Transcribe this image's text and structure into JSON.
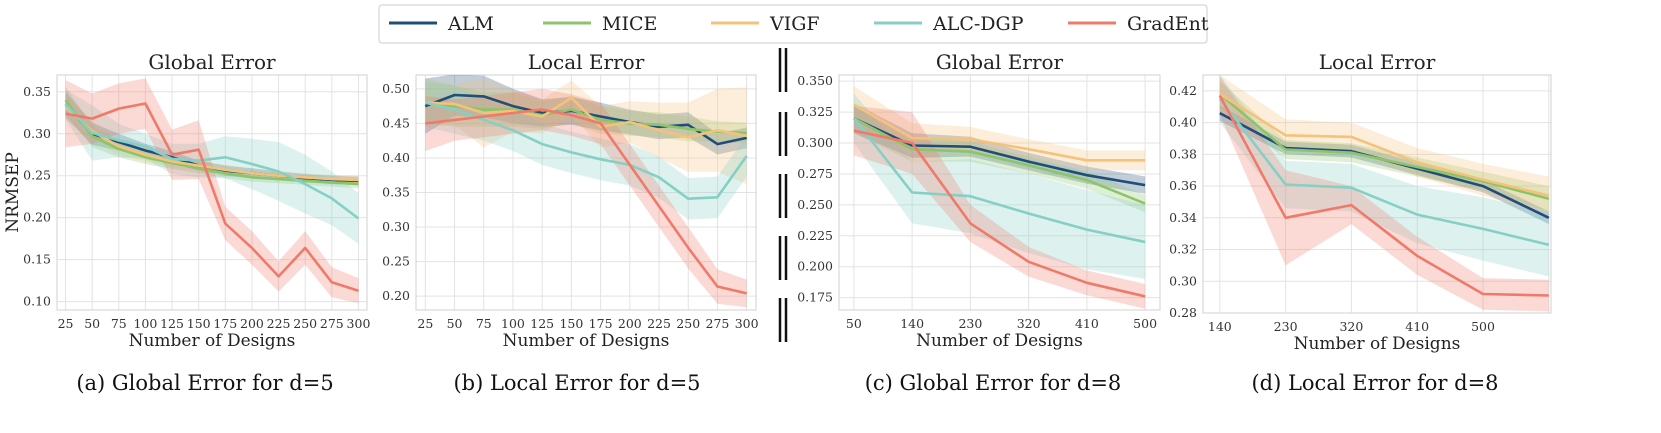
{
  "legend": [
    {
      "name": "ALM",
      "color": "#1f4e79"
    },
    {
      "name": "MICE",
      "color": "#8cc46a"
    },
    {
      "name": "VIGF",
      "color": "#f5c27a"
    },
    {
      "name": "ALC-DGP",
      "color": "#86cfc4"
    },
    {
      "name": "GradEnt",
      "color": "#ef7a6a"
    }
  ],
  "chart_data": [
    {
      "type": "line",
      "title": "Global Error",
      "caption": "(a) Global Error for d=5",
      "xlabel": "Number of Designs",
      "ylabel": "NRMSEP",
      "x": [
        25,
        50,
        75,
        100,
        125,
        150,
        175,
        200,
        225,
        250,
        275,
        300
      ],
      "xticks": [
        "25",
        "50",
        "75",
        "100",
        "125",
        "150",
        "175",
        "200",
        "225",
        "250",
        "275",
        "300"
      ],
      "xlim": [
        17,
        308
      ],
      "yticks": [
        0.1,
        0.15,
        0.2,
        0.25,
        0.3,
        0.35
      ],
      "yticklabels": [
        "0.10",
        "0.15",
        "0.20",
        "0.25",
        "0.30",
        "0.35"
      ],
      "ylim": [
        0.09,
        0.37
      ],
      "series": [
        {
          "name": "ALM",
          "values": [
            0.335,
            0.3,
            0.29,
            0.28,
            0.272,
            0.262,
            0.256,
            0.253,
            0.25,
            0.247,
            0.245,
            0.244
          ],
          "band": [
            0.015,
            0.013,
            0.01,
            0.008,
            0.007,
            0.006,
            0.006,
            0.006,
            0.005,
            0.005,
            0.005,
            0.005
          ]
        },
        {
          "name": "MICE",
          "values": [
            0.34,
            0.297,
            0.282,
            0.272,
            0.265,
            0.259,
            0.253,
            0.248,
            0.246,
            0.244,
            0.242,
            0.24
          ],
          "band": [
            0.016,
            0.013,
            0.01,
            0.008,
            0.007,
            0.006,
            0.006,
            0.005,
            0.005,
            0.005,
            0.005,
            0.005
          ]
        },
        {
          "name": "VIGF",
          "values": [
            0.332,
            0.303,
            0.285,
            0.275,
            0.267,
            0.262,
            0.257,
            0.253,
            0.25,
            0.248,
            0.246,
            0.245
          ],
          "band": [
            0.015,
            0.012,
            0.01,
            0.008,
            0.007,
            0.006,
            0.006,
            0.005,
            0.005,
            0.005,
            0.005,
            0.005
          ]
        },
        {
          "name": "ALC-DGP",
          "values": [
            0.335,
            0.301,
            0.292,
            0.285,
            0.27,
            0.268,
            0.272,
            0.264,
            0.255,
            0.24,
            0.223,
            0.199
          ],
          "band": [
            0.018,
            0.033,
            0.02,
            0.015,
            0.018,
            0.02,
            0.025,
            0.03,
            0.035,
            0.035,
            0.032,
            0.03
          ]
        },
        {
          "name": "GradEnt",
          "values": [
            0.324,
            0.318,
            0.33,
            0.336,
            0.275,
            0.281,
            0.193,
            0.164,
            0.13,
            0.164,
            0.123,
            0.113
          ],
          "band": [
            0.04,
            0.03,
            0.03,
            0.03,
            0.03,
            0.035,
            0.02,
            0.02,
            0.018,
            0.02,
            0.018,
            0.015
          ]
        }
      ]
    },
    {
      "type": "line",
      "title": "Local Error",
      "caption": "(b) Local Error for d=5",
      "xlabel": "Number of Designs",
      "ylabel": "",
      "x": [
        25,
        50,
        75,
        100,
        125,
        150,
        175,
        200,
        225,
        250,
        275,
        300
      ],
      "xticks": [
        "25",
        "50",
        "75",
        "100",
        "125",
        "150",
        "175",
        "200",
        "225",
        "250",
        "275",
        "300"
      ],
      "xlim": [
        17,
        308
      ],
      "yticks": [
        0.2,
        0.25,
        0.3,
        0.35,
        0.4,
        0.45,
        0.5
      ],
      "yticklabels": [
        "0.20",
        "0.25",
        "0.30",
        "0.35",
        "0.40",
        "0.45",
        "0.50"
      ],
      "ylim": [
        0.18,
        0.52
      ],
      "series": [
        {
          "name": "ALM",
          "values": [
            0.475,
            0.491,
            0.489,
            0.475,
            0.465,
            0.468,
            0.46,
            0.452,
            0.445,
            0.448,
            0.42,
            0.429
          ],
          "band": [
            0.04,
            0.03,
            0.03,
            0.025,
            0.02,
            0.02,
            0.02,
            0.018,
            0.018,
            0.018,
            0.015,
            0.015
          ]
        },
        {
          "name": "MICE",
          "values": [
            0.48,
            0.475,
            0.47,
            0.47,
            0.462,
            0.47,
            0.455,
            0.45,
            0.448,
            0.442,
            0.438,
            0.436
          ],
          "band": [
            0.03,
            0.03,
            0.025,
            0.025,
            0.02,
            0.02,
            0.02,
            0.018,
            0.018,
            0.018,
            0.015,
            0.015
          ]
        },
        {
          "name": "VIGF",
          "values": [
            0.48,
            0.478,
            0.465,
            0.468,
            0.46,
            0.487,
            0.445,
            0.452,
            0.44,
            0.43,
            0.44,
            0.432
          ],
          "band": [
            0.035,
            0.03,
            0.05,
            0.03,
            0.025,
            0.025,
            0.03,
            0.03,
            0.04,
            0.05,
            0.06,
            0.07
          ]
        },
        {
          "name": "ALC-DGP",
          "values": [
            0.48,
            0.47,
            0.455,
            0.44,
            0.42,
            0.408,
            0.398,
            0.39,
            0.372,
            0.341,
            0.343,
            0.403
          ],
          "band": [
            0.035,
            0.035,
            0.03,
            0.03,
            0.03,
            0.03,
            0.03,
            0.03,
            0.03,
            0.03,
            0.03,
            0.03
          ]
        },
        {
          "name": "GradEnt",
          "values": [
            0.45,
            0.455,
            0.46,
            0.465,
            0.47,
            0.462,
            0.45,
            0.39,
            0.33,
            0.27,
            0.214,
            0.204
          ],
          "band": [
            0.04,
            0.03,
            0.03,
            0.03,
            0.03,
            0.03,
            0.03,
            0.03,
            0.03,
            0.03,
            0.025,
            0.02
          ]
        }
      ]
    },
    {
      "type": "line",
      "title": "Global Error",
      "caption": "(c) Global Error for d=8",
      "xlabel": "Number of Designs",
      "ylabel": "",
      "x": [
        50,
        140,
        230,
        320,
        410,
        500
      ],
      "xticks": [
        "50",
        "140",
        "230",
        "320",
        "410",
        "500"
      ],
      "xlim": [
        27,
        523
      ],
      "yticks": [
        0.175,
        0.2,
        0.225,
        0.25,
        0.275,
        0.3,
        0.325,
        0.35
      ],
      "yticklabels": [
        "0.175",
        "0.200",
        "0.225",
        "0.250",
        "0.275",
        "0.300",
        "0.325",
        "0.350"
      ],
      "ylim": [
        0.165,
        0.355
      ],
      "series": [
        {
          "name": "ALM",
          "values": [
            0.32,
            0.298,
            0.297,
            0.285,
            0.274,
            0.266
          ],
          "band": [
            0.012,
            0.01,
            0.008,
            0.007,
            0.007,
            0.007
          ]
        },
        {
          "name": "MICE",
          "values": [
            0.32,
            0.295,
            0.293,
            0.282,
            0.27,
            0.251
          ],
          "band": [
            0.012,
            0.01,
            0.008,
            0.007,
            0.007,
            0.007
          ]
        },
        {
          "name": "VIGF",
          "values": [
            0.331,
            0.304,
            0.303,
            0.295,
            0.286,
            0.286
          ],
          "band": [
            0.015,
            0.012,
            0.01,
            0.008,
            0.008,
            0.008
          ]
        },
        {
          "name": "ALC-DGP",
          "values": [
            0.32,
            0.26,
            0.257,
            0.243,
            0.23,
            0.22
          ],
          "band": [
            0.02,
            0.025,
            0.03,
            0.032,
            0.032,
            0.03
          ]
        },
        {
          "name": "GradEnt",
          "values": [
            0.31,
            0.3,
            0.235,
            0.204,
            0.187,
            0.176
          ],
          "band": [
            0.02,
            0.025,
            0.015,
            0.012,
            0.01,
            0.01
          ]
        }
      ]
    },
    {
      "type": "line",
      "title": "Local Error",
      "caption": "(d) Local Error for d=8",
      "xlabel": "Number of Designs",
      "ylabel": "",
      "x": [
        140,
        230,
        320,
        410,
        500,
        590
      ],
      "xticks": [
        "140",
        "230",
        "320",
        "410",
        "500",
        ""
      ],
      "xlim": [
        117,
        593
      ],
      "yticks": [
        0.28,
        0.3,
        0.32,
        0.34,
        0.36,
        0.38,
        0.4,
        0.42
      ],
      "yticklabels": [
        "0.28",
        "0.30",
        "0.32",
        "0.34",
        "0.36",
        "0.38",
        "0.40",
        "0.42"
      ],
      "ylim": [
        0.28,
        0.43
      ],
      "series": [
        {
          "name": "ALM",
          "values": [
            0.406,
            0.384,
            0.382,
            0.371,
            0.36,
            0.34
          ],
          "band": [
            0.005,
            0.004,
            0.004,
            0.004,
            0.004,
            0.004
          ]
        },
        {
          "name": "MICE",
          "values": [
            0.418,
            0.383,
            0.381,
            0.372,
            0.363,
            0.352
          ],
          "band": [
            0.008,
            0.006,
            0.006,
            0.006,
            0.006,
            0.008
          ]
        },
        {
          "name": "VIGF",
          "values": [
            0.418,
            0.392,
            0.391,
            0.375,
            0.364,
            0.354
          ],
          "band": [
            0.012,
            0.01,
            0.009,
            0.009,
            0.01,
            0.012
          ]
        },
        {
          "name": "ALC-DGP",
          "values": [
            0.415,
            0.361,
            0.359,
            0.342,
            0.333,
            0.323
          ],
          "band": [
            0.015,
            0.015,
            0.015,
            0.018,
            0.02,
            0.02
          ]
        },
        {
          "name": "GradEnt",
          "values": [
            0.417,
            0.34,
            0.348,
            0.316,
            0.292,
            0.291
          ],
          "band": [
            0.012,
            0.03,
            0.012,
            0.012,
            0.01,
            0.01
          ]
        }
      ]
    }
  ]
}
